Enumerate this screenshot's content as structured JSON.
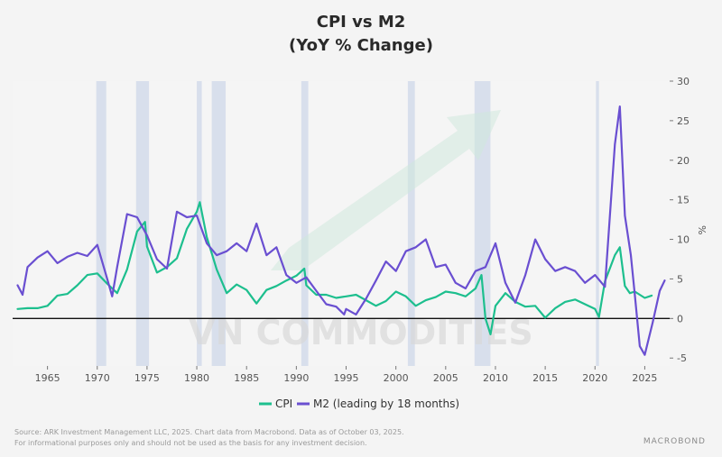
{
  "chart_data": {
    "type": "line",
    "title": "CPI vs M2",
    "subtitle": "(YoY % Change)",
    "ylabel": "%",
    "xlim": [
      1961.5,
      2027.5
    ],
    "ylim": [
      -6,
      30
    ],
    "x_ticks": [
      1965,
      1970,
      1975,
      1980,
      1985,
      1990,
      1995,
      2000,
      2005,
      2010,
      2015,
      2020,
      2025
    ],
    "y_ticks": [
      -5,
      0,
      5,
      10,
      15,
      20,
      25,
      30
    ],
    "y_axis_side": "right",
    "zero_line": true,
    "grid": false,
    "legend_position": "bottom",
    "recessions": [
      [
        1969.9,
        1970.9
      ],
      [
        1973.9,
        1975.2
      ],
      [
        1980.0,
        1980.5
      ],
      [
        1981.5,
        1982.9
      ],
      [
        1990.5,
        1991.2
      ],
      [
        2001.2,
        2001.9
      ],
      [
        2007.9,
        2009.5
      ],
      [
        2020.1,
        2020.4
      ]
    ],
    "series": [
      {
        "name": "CPI",
        "color": "#1dbf8e",
        "points": [
          [
            1962,
            1.2
          ],
          [
            1963,
            1.3
          ],
          [
            1964,
            1.3
          ],
          [
            1965,
            1.6
          ],
          [
            1966,
            2.9
          ],
          [
            1967,
            3.1
          ],
          [
            1968,
            4.2
          ],
          [
            1969,
            5.5
          ],
          [
            1970,
            5.7
          ],
          [
            1971,
            4.4
          ],
          [
            1972,
            3.2
          ],
          [
            1973,
            6.2
          ],
          [
            1974,
            11.0
          ],
          [
            1974.8,
            12.2
          ],
          [
            1975,
            9.1
          ],
          [
            1976,
            5.8
          ],
          [
            1977,
            6.5
          ],
          [
            1978,
            7.6
          ],
          [
            1979,
            11.3
          ],
          [
            1980,
            13.5
          ],
          [
            1980.3,
            14.7
          ],
          [
            1981,
            10.3
          ],
          [
            1982,
            6.2
          ],
          [
            1983,
            3.2
          ],
          [
            1984,
            4.3
          ],
          [
            1985,
            3.6
          ],
          [
            1986,
            1.9
          ],
          [
            1987,
            3.6
          ],
          [
            1988,
            4.1
          ],
          [
            1989,
            4.8
          ],
          [
            1990,
            5.4
          ],
          [
            1990.8,
            6.3
          ],
          [
            1991,
            4.2
          ],
          [
            1992,
            3.0
          ],
          [
            1993,
            3.0
          ],
          [
            1994,
            2.6
          ],
          [
            1995,
            2.8
          ],
          [
            1996,
            3.0
          ],
          [
            1997,
            2.3
          ],
          [
            1998,
            1.6
          ],
          [
            1999,
            2.2
          ],
          [
            2000,
            3.4
          ],
          [
            2001,
            2.8
          ],
          [
            2002,
            1.6
          ],
          [
            2003,
            2.3
          ],
          [
            2004,
            2.7
          ],
          [
            2005,
            3.4
          ],
          [
            2006,
            3.2
          ],
          [
            2007,
            2.8
          ],
          [
            2008,
            3.8
          ],
          [
            2008.6,
            5.5
          ],
          [
            2009,
            0.0
          ],
          [
            2009.5,
            -2.0
          ],
          [
            2010,
            1.6
          ],
          [
            2011,
            3.2
          ],
          [
            2012,
            2.1
          ],
          [
            2013,
            1.5
          ],
          [
            2014,
            1.6
          ],
          [
            2015,
            0.1
          ],
          [
            2016,
            1.3
          ],
          [
            2017,
            2.1
          ],
          [
            2018,
            2.4
          ],
          [
            2019,
            1.8
          ],
          [
            2020,
            1.2
          ],
          [
            2020.4,
            0.2
          ],
          [
            2021,
            4.7
          ],
          [
            2022,
            8.0
          ],
          [
            2022.5,
            9.0
          ],
          [
            2023,
            4.1
          ],
          [
            2023.5,
            3.2
          ],
          [
            2024,
            3.4
          ],
          [
            2024.5,
            3.0
          ],
          [
            2025,
            2.6
          ],
          [
            2025.7,
            2.9
          ]
        ]
      },
      {
        "name": "M2 (leading by 18 months)",
        "color": "#6a4fd1",
        "points": [
          [
            1962,
            4.2
          ],
          [
            1962.5,
            3.0
          ],
          [
            1963,
            6.5
          ],
          [
            1964,
            7.7
          ],
          [
            1965,
            8.5
          ],
          [
            1966,
            7.0
          ],
          [
            1967,
            7.8
          ],
          [
            1968,
            8.3
          ],
          [
            1969,
            7.9
          ],
          [
            1970,
            9.3
          ],
          [
            1971,
            5.0
          ],
          [
            1971.5,
            2.8
          ],
          [
            1972,
            6.5
          ],
          [
            1973,
            13.2
          ],
          [
            1974,
            12.8
          ],
          [
            1975,
            10.5
          ],
          [
            1976,
            7.5
          ],
          [
            1977,
            6.3
          ],
          [
            1978,
            13.5
          ],
          [
            1979,
            12.8
          ],
          [
            1980,
            13.0
          ],
          [
            1981,
            9.5
          ],
          [
            1982,
            8.0
          ],
          [
            1983,
            8.5
          ],
          [
            1984,
            9.5
          ],
          [
            1985,
            8.5
          ],
          [
            1986,
            12.0
          ],
          [
            1987,
            8.0
          ],
          [
            1988,
            9.0
          ],
          [
            1989,
            5.5
          ],
          [
            1990,
            4.5
          ],
          [
            1991,
            5.2
          ],
          [
            1992,
            3.5
          ],
          [
            1993,
            1.8
          ],
          [
            1994,
            1.5
          ],
          [
            1994.8,
            0.5
          ],
          [
            1995,
            1.2
          ],
          [
            1996,
            0.5
          ],
          [
            1997,
            2.5
          ],
          [
            1998,
            4.8
          ],
          [
            1999,
            7.2
          ],
          [
            2000,
            6.0
          ],
          [
            2001,
            8.5
          ],
          [
            2002,
            9.0
          ],
          [
            2003,
            10.0
          ],
          [
            2004,
            6.5
          ],
          [
            2005,
            6.8
          ],
          [
            2006,
            4.5
          ],
          [
            2007,
            3.8
          ],
          [
            2008,
            6.0
          ],
          [
            2009,
            6.5
          ],
          [
            2010,
            9.5
          ],
          [
            2011,
            4.5
          ],
          [
            2012,
            2.0
          ],
          [
            2013,
            5.5
          ],
          [
            2014,
            10.0
          ],
          [
            2015,
            7.5
          ],
          [
            2016,
            6.0
          ],
          [
            2017,
            6.5
          ],
          [
            2018,
            6.0
          ],
          [
            2019,
            4.5
          ],
          [
            2020,
            5.5
          ],
          [
            2021,
            4.0
          ],
          [
            2022,
            22.0
          ],
          [
            2022.5,
            26.8
          ],
          [
            2023,
            13.0
          ],
          [
            2023.6,
            8.0
          ],
          [
            2024,
            3.0
          ],
          [
            2024.5,
            -3.5
          ],
          [
            2025,
            -4.6
          ],
          [
            2025.8,
            -0.5
          ],
          [
            2026.5,
            3.5
          ],
          [
            2027,
            4.8
          ]
        ]
      }
    ]
  },
  "footer": {
    "source_line": "Source: ARK Investment Management LLC, 2025. Chart data from Macrobond. Data as of October 03, 2025.",
    "disclaimer_line": "For informational purposes only and should not be used as the basis for any investment decision."
  },
  "watermark_text": "VN COMMODITIES",
  "logo_text": "MACROBOND"
}
